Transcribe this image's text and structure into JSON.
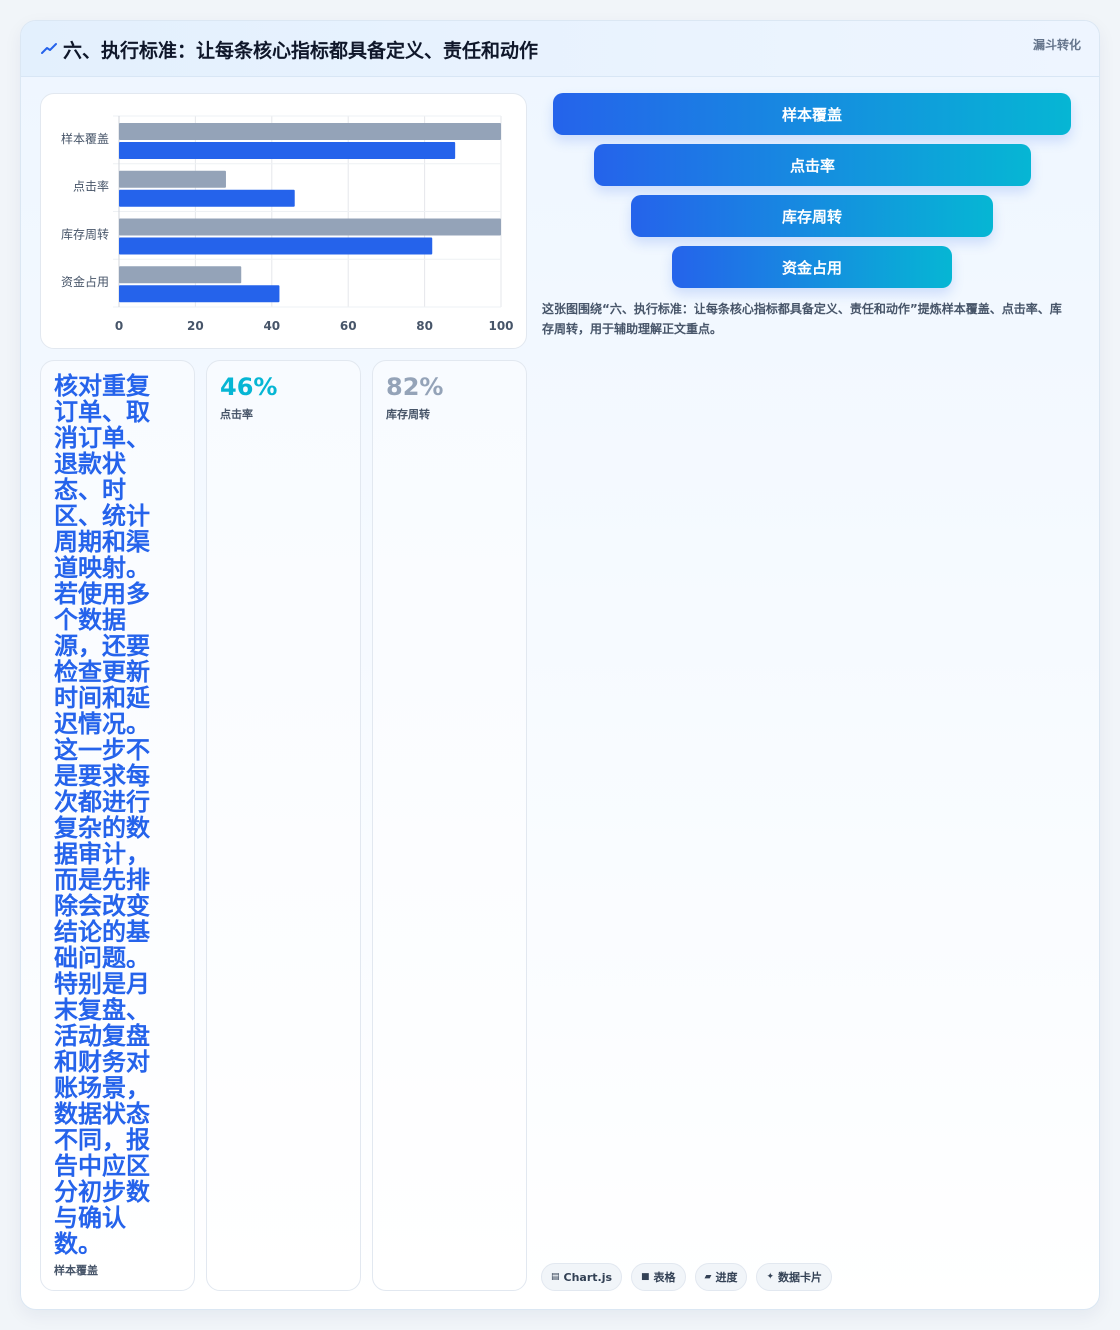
{
  "header": {
    "title": "六、执行标准：让每条核心指标都具备定义、责任和动作",
    "tag": "漏斗转化"
  },
  "chart_data": {
    "type": "bar",
    "orientation": "horizontal",
    "categories": [
      "样本覆盖",
      "点击率",
      "库存周转",
      "资金占用"
    ],
    "series": [
      {
        "values": [
          100,
          28,
          100,
          32
        ],
        "color": "#94a3b8"
      },
      {
        "values": [
          88,
          46,
          82,
          42
        ],
        "color": "#2563eb"
      }
    ],
    "xlim": [
      0,
      100
    ],
    "xticks": [
      "0",
      "20",
      "40",
      "60",
      "80",
      "100"
    ],
    "grid": true
  },
  "funnel": {
    "steps": [
      {
        "label": "样本覆盖"
      },
      {
        "label": "点击率"
      },
      {
        "label": "库存周转"
      },
      {
        "label": "资金占用"
      }
    ]
  },
  "caption": "这张图围绕“六、执行标准：让每条核心指标都具备定义、责任和动作”提炼样本覆盖、点击率、库存周转，用于辅助理解正文重点。",
  "stats": {
    "text_card": {
      "text": "核对重复订单、取消订单、退款状态、时区、统计周期和渠道映射。若使用多个数据源，还要检查更新时间和延迟情况。这一步不是要求每次都进行复杂的数据审计，而是先排除会改变结论的基础问题。特别是月末复盘、活动复盘和财务对账场景，数据状态不同，报告中应区分初步数与确认数。",
      "label": "样本覆盖"
    },
    "click": {
      "value": "46%",
      "label": "点击率"
    },
    "inventory": {
      "value": "82%",
      "label": "库存周转"
    }
  },
  "chips": [
    {
      "icon": "chart-icon",
      "glyph": "▤",
      "label": "Chart.js"
    },
    {
      "icon": "table-icon",
      "glyph": "■",
      "label": "表格"
    },
    {
      "icon": "progress-icon",
      "glyph": "▰",
      "label": "进度"
    },
    {
      "icon": "sparkle-icon",
      "glyph": "✦",
      "label": "数据卡片"
    }
  ],
  "colors": {
    "accent": "#2563eb",
    "accent_secondary": "#06b6d4",
    "muted_bar": "#94a3b8"
  }
}
